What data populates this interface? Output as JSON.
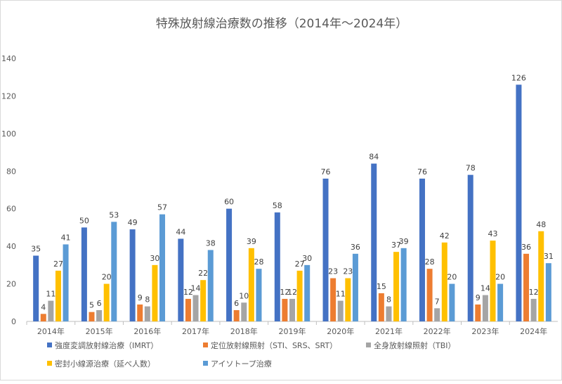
{
  "chart_data": {
    "type": "bar",
    "title": "特殊放射線治療数の推移（2014年～2024年）",
    "xlabel": "",
    "ylabel": "",
    "ylim": [
      0,
      140
    ],
    "yticks": [
      0,
      20,
      40,
      60,
      80,
      100,
      120,
      140
    ],
    "grid": false,
    "legend_position": "bottom",
    "categories": [
      "2014年",
      "2015年",
      "2016年",
      "2017年",
      "2018年",
      "2019年",
      "2020年",
      "2021年",
      "2022年",
      "2023年",
      "2024年"
    ],
    "series": [
      {
        "name": "強度変調放射線治療（IMRT）",
        "color": "#4472c4",
        "values": [
          35,
          50,
          49,
          44,
          60,
          58,
          76,
          84,
          76,
          78,
          126
        ]
      },
      {
        "name": "定位放射線照射（STI、SRS、SRT）",
        "color": "#ed7d31",
        "values": [
          4,
          5,
          9,
          12,
          6,
          12,
          23,
          15,
          28,
          9,
          36
        ]
      },
      {
        "name": "全身放射線照射（TBI）",
        "color": "#a5a5a5",
        "values": [
          11,
          6,
          8,
          14,
          10,
          12,
          11,
          8,
          7,
          14,
          12
        ]
      },
      {
        "name": "密封小線源治療（延べ人数）",
        "color": "#ffc000",
        "values": [
          27,
          20,
          30,
          22,
          39,
          27,
          23,
          37,
          42,
          43,
          48
        ]
      },
      {
        "name": "アイソトープ治療",
        "color": "#5b9bd5",
        "values": [
          41,
          53,
          57,
          38,
          28,
          30,
          36,
          39,
          20,
          20,
          31
        ]
      }
    ]
  }
}
